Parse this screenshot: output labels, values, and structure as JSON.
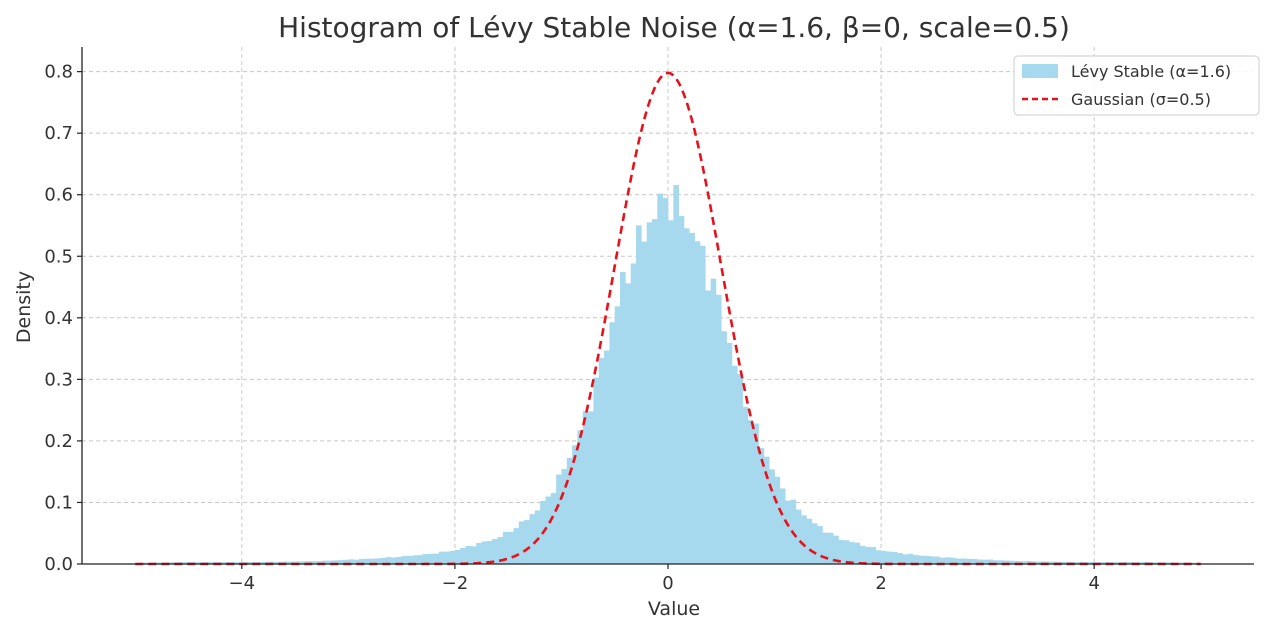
{
  "chart_data": {
    "type": "bar",
    "title": "Histogram of Lévy Stable Noise (α=1.6, β=0, scale=0.5)",
    "xlabel": "Value",
    "ylabel": "Density",
    "xlim": [
      -5.5,
      5.5
    ],
    "ylim": [
      0,
      0.84
    ],
    "grid": true,
    "legend_position": "top-right",
    "x_ticks": [
      {
        "value": -4,
        "label": "−4"
      },
      {
        "value": -2,
        "label": "−2"
      },
      {
        "value": 0,
        "label": "0"
      },
      {
        "value": 2,
        "label": "2"
      },
      {
        "value": 4,
        "label": "4"
      }
    ],
    "y_ticks": [
      {
        "value": 0.0,
        "label": "0.0"
      },
      {
        "value": 0.1,
        "label": "0.1"
      },
      {
        "value": 0.2,
        "label": "0.2"
      },
      {
        "value": 0.3,
        "label": "0.3"
      },
      {
        "value": 0.4,
        "label": "0.4"
      },
      {
        "value": 0.5,
        "label": "0.5"
      },
      {
        "value": 0.6,
        "label": "0.6"
      },
      {
        "value": 0.7,
        "label": "0.7"
      },
      {
        "value": 0.8,
        "label": "0.8"
      }
    ],
    "series": [
      {
        "name": "Lévy Stable (α=1.6)",
        "kind": "histogram",
        "color": "#a6d8ee",
        "bin_width": 0.05,
        "bins": [
          {
            "x": -5.0,
            "y": 0.002
          },
          {
            "x": -4.5,
            "y": 0.003
          },
          {
            "x": -4.0,
            "y": 0.003
          },
          {
            "x": -3.5,
            "y": 0.004
          },
          {
            "x": -3.25,
            "y": 0.005
          },
          {
            "x": -3.0,
            "y": 0.007
          },
          {
            "x": -2.75,
            "y": 0.009
          },
          {
            "x": -2.5,
            "y": 0.012
          },
          {
            "x": -2.25,
            "y": 0.016
          },
          {
            "x": -2.0,
            "y": 0.022
          },
          {
            "x": -1.9,
            "y": 0.027
          },
          {
            "x": -1.8,
            "y": 0.032
          },
          {
            "x": -1.7,
            "y": 0.037
          },
          {
            "x": -1.6,
            "y": 0.042
          },
          {
            "x": -1.5,
            "y": 0.052
          },
          {
            "x": -1.4,
            "y": 0.062
          },
          {
            "x": -1.3,
            "y": 0.077
          },
          {
            "x": -1.2,
            "y": 0.093
          },
          {
            "x": -1.1,
            "y": 0.115
          },
          {
            "x": -1.0,
            "y": 0.145
          },
          {
            "x": -0.9,
            "y": 0.185
          },
          {
            "x": -0.8,
            "y": 0.225
          },
          {
            "x": -0.7,
            "y": 0.28
          },
          {
            "x": -0.6,
            "y": 0.34
          },
          {
            "x": -0.5,
            "y": 0.41
          },
          {
            "x": -0.4,
            "y": 0.465
          },
          {
            "x": -0.3,
            "y": 0.51
          },
          {
            "x": -0.2,
            "y": 0.55
          },
          {
            "x": -0.1,
            "y": 0.575
          },
          {
            "x": 0.0,
            "y": 0.6
          },
          {
            "x": 0.1,
            "y": 0.575
          },
          {
            "x": 0.2,
            "y": 0.55
          },
          {
            "x": 0.3,
            "y": 0.51
          },
          {
            "x": 0.4,
            "y": 0.465
          },
          {
            "x": 0.5,
            "y": 0.41
          },
          {
            "x": 0.6,
            "y": 0.34
          },
          {
            "x": 0.7,
            "y": 0.28
          },
          {
            "x": 0.8,
            "y": 0.225
          },
          {
            "x": 0.9,
            "y": 0.185
          },
          {
            "x": 1.0,
            "y": 0.145
          },
          {
            "x": 1.1,
            "y": 0.115
          },
          {
            "x": 1.2,
            "y": 0.093
          },
          {
            "x": 1.3,
            "y": 0.077
          },
          {
            "x": 1.4,
            "y": 0.062
          },
          {
            "x": 1.5,
            "y": 0.052
          },
          {
            "x": 1.6,
            "y": 0.042
          },
          {
            "x": 1.7,
            "y": 0.037
          },
          {
            "x": 1.8,
            "y": 0.032
          },
          {
            "x": 1.9,
            "y": 0.027
          },
          {
            "x": 2.0,
            "y": 0.022
          },
          {
            "x": 2.25,
            "y": 0.016
          },
          {
            "x": 2.5,
            "y": 0.012
          },
          {
            "x": 2.75,
            "y": 0.009
          },
          {
            "x": 3.0,
            "y": 0.007
          },
          {
            "x": 3.25,
            "y": 0.005
          },
          {
            "x": 3.5,
            "y": 0.004
          },
          {
            "x": 4.0,
            "y": 0.003
          },
          {
            "x": 4.5,
            "y": 0.003
          },
          {
            "x": 5.0,
            "y": 0.002
          }
        ]
      },
      {
        "name": "Gaussian (σ=0.5)",
        "kind": "line",
        "style": "dashed",
        "color": "#e8111a",
        "x_range": [
          -5,
          5
        ],
        "mean": 0,
        "sigma": 0.5,
        "peak": 0.798
      }
    ]
  }
}
